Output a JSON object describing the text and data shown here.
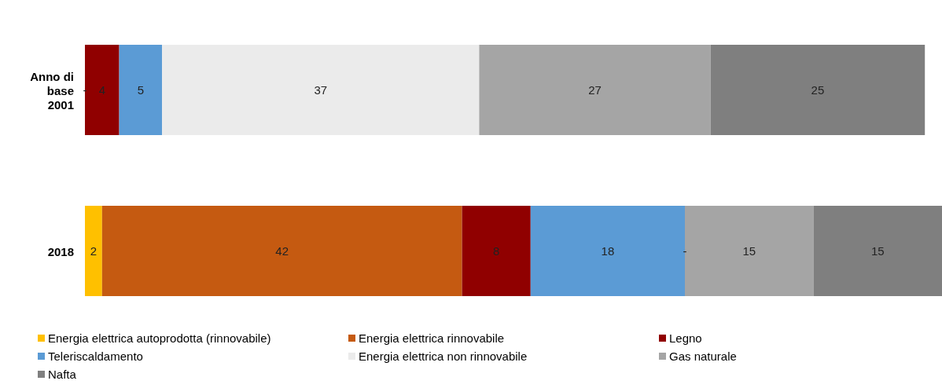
{
  "chart_data": {
    "type": "bar",
    "orientation": "horizontal",
    "stacked": true,
    "categories": [
      "Anno di base 2001",
      "2018"
    ],
    "series": [
      {
        "name": "Energia elettrica autoprodotta (rinnovabile)",
        "color": "#ffc000",
        "values": [
          null,
          2
        ],
        "value_labels": [
          null,
          "2"
        ]
      },
      {
        "name": "Energia elettrica rinnovabile",
        "color": "#c55a11",
        "values": [
          null,
          42
        ],
        "value_labels": [
          null,
          "42"
        ]
      },
      {
        "name": "Legno",
        "color": "#900000",
        "values": [
          4,
          8
        ],
        "value_labels": [
          "4",
          "8"
        ]
      },
      {
        "name": "Teleriscaldamento",
        "color": "#5b9bd5",
        "values": [
          5,
          18
        ],
        "value_labels": [
          "5",
          "18"
        ]
      },
      {
        "name": "Energia elettrica non rinnovabile",
        "color": "#ebebeb",
        "values": [
          37,
          null
        ],
        "value_labels": [
          "37",
          null
        ]
      },
      {
        "name": "Gas naturale",
        "color": "#a5a5a5",
        "values": [
          27,
          15
        ],
        "value_labels": [
          "27",
          "15"
        ]
      },
      {
        "name": "Nafta",
        "color": "#7f7f7f",
        "values": [
          25,
          15
        ],
        "value_labels": [
          "25",
          "15"
        ]
      }
    ],
    "annotations": [
      {
        "text": "-",
        "x": 0,
        "y": "Anno di base 2001"
      },
      {
        "text": "-",
        "x": 70,
        "y": "2018"
      }
    ],
    "legend": "bottom",
    "grid": false
  }
}
